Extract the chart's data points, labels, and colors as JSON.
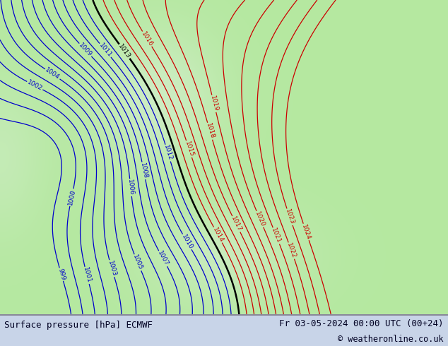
{
  "title_left": "Surface pressure [hPa] ECMWF",
  "title_right": "Fr 03-05-2024 00:00 UTC (00+24)",
  "copyright": "© weatheronline.co.uk",
  "bg_color_land": "#b5e8a0",
  "bg_color_sea": "#c8e8c8",
  "bg_color_gray": "#cccccc",
  "contour_color_low": "#0000cc",
  "contour_color_high": "#cc0000",
  "contour_color_1013": "#000000",
  "label_fontsize": 6.5,
  "footer_fontsize": 9.0,
  "footer_bg": "#c8d4e8",
  "footer_text_color": "#000022"
}
